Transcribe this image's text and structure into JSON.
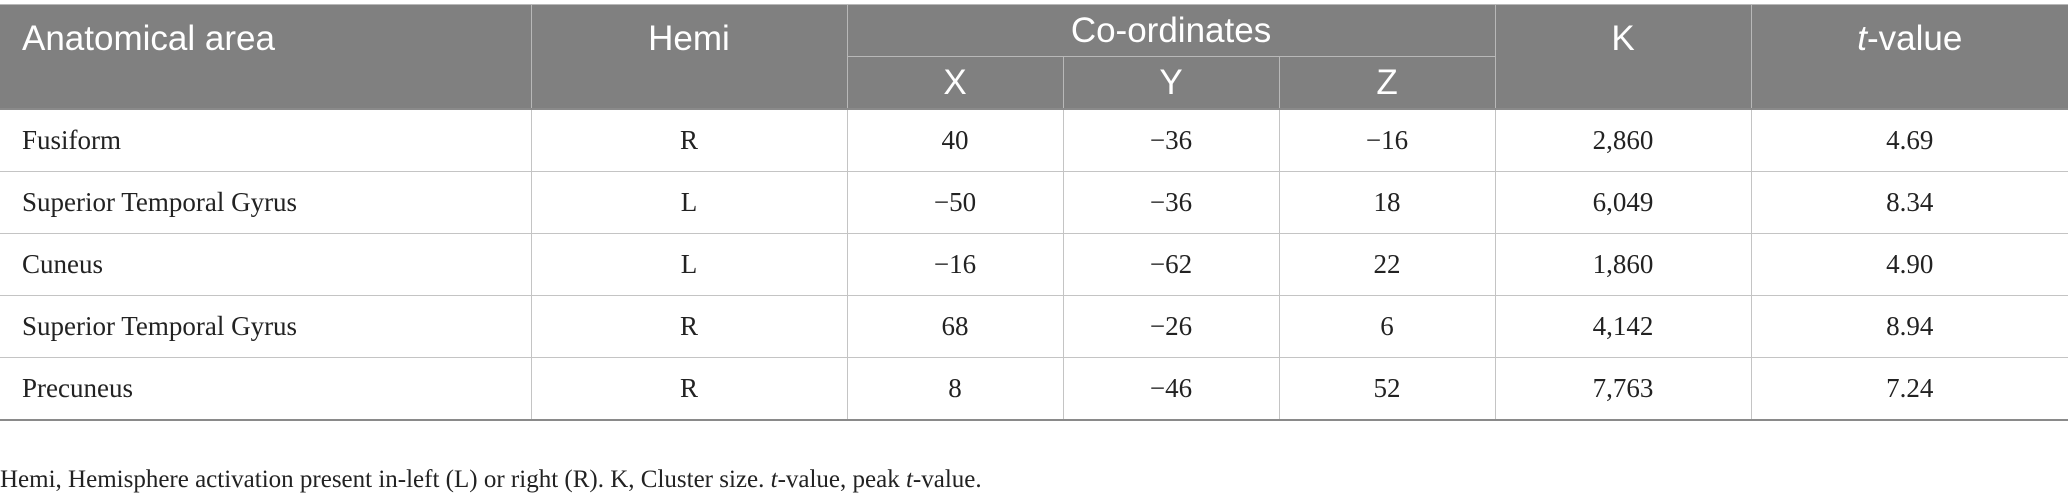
{
  "table": {
    "headers": {
      "area": "Anatomical area",
      "hemi": "Hemi",
      "coords": "Co-ordinates",
      "x": "X",
      "y": "Y",
      "z": "Z",
      "k": "K",
      "t_prefix": "t",
      "t_suffix": "-value"
    },
    "rows": [
      {
        "area": "Fusiform",
        "hemi": "R",
        "x": "40",
        "y": "−36",
        "z": "−16",
        "k": "2,860",
        "t": "4.69"
      },
      {
        "area": "Superior Temporal Gyrus",
        "hemi": "L",
        "x": "−50",
        "y": "−36",
        "z": "18",
        "k": "6,049",
        "t": "8.34"
      },
      {
        "area": "Cuneus",
        "hemi": "L",
        "x": "−16",
        "y": "−62",
        "z": "22",
        "k": "1,860",
        "t": "4.90"
      },
      {
        "area": "Superior Temporal Gyrus",
        "hemi": "R",
        "x": "68",
        "y": "−26",
        "z": "6",
        "k": "4,142",
        "t": "8.94"
      },
      {
        "area": "Precuneus",
        "hemi": "R",
        "x": "8",
        "y": "−46",
        "z": "52",
        "k": "7,763",
        "t": "7.24"
      }
    ]
  },
  "footnote": {
    "part1": "Hemi, Hemisphere activation present in-left (L) or right (R). K, Cluster size. ",
    "t1": "t",
    "part2": "-value, peak ",
    "t2": "t",
    "part3": "-value."
  }
}
